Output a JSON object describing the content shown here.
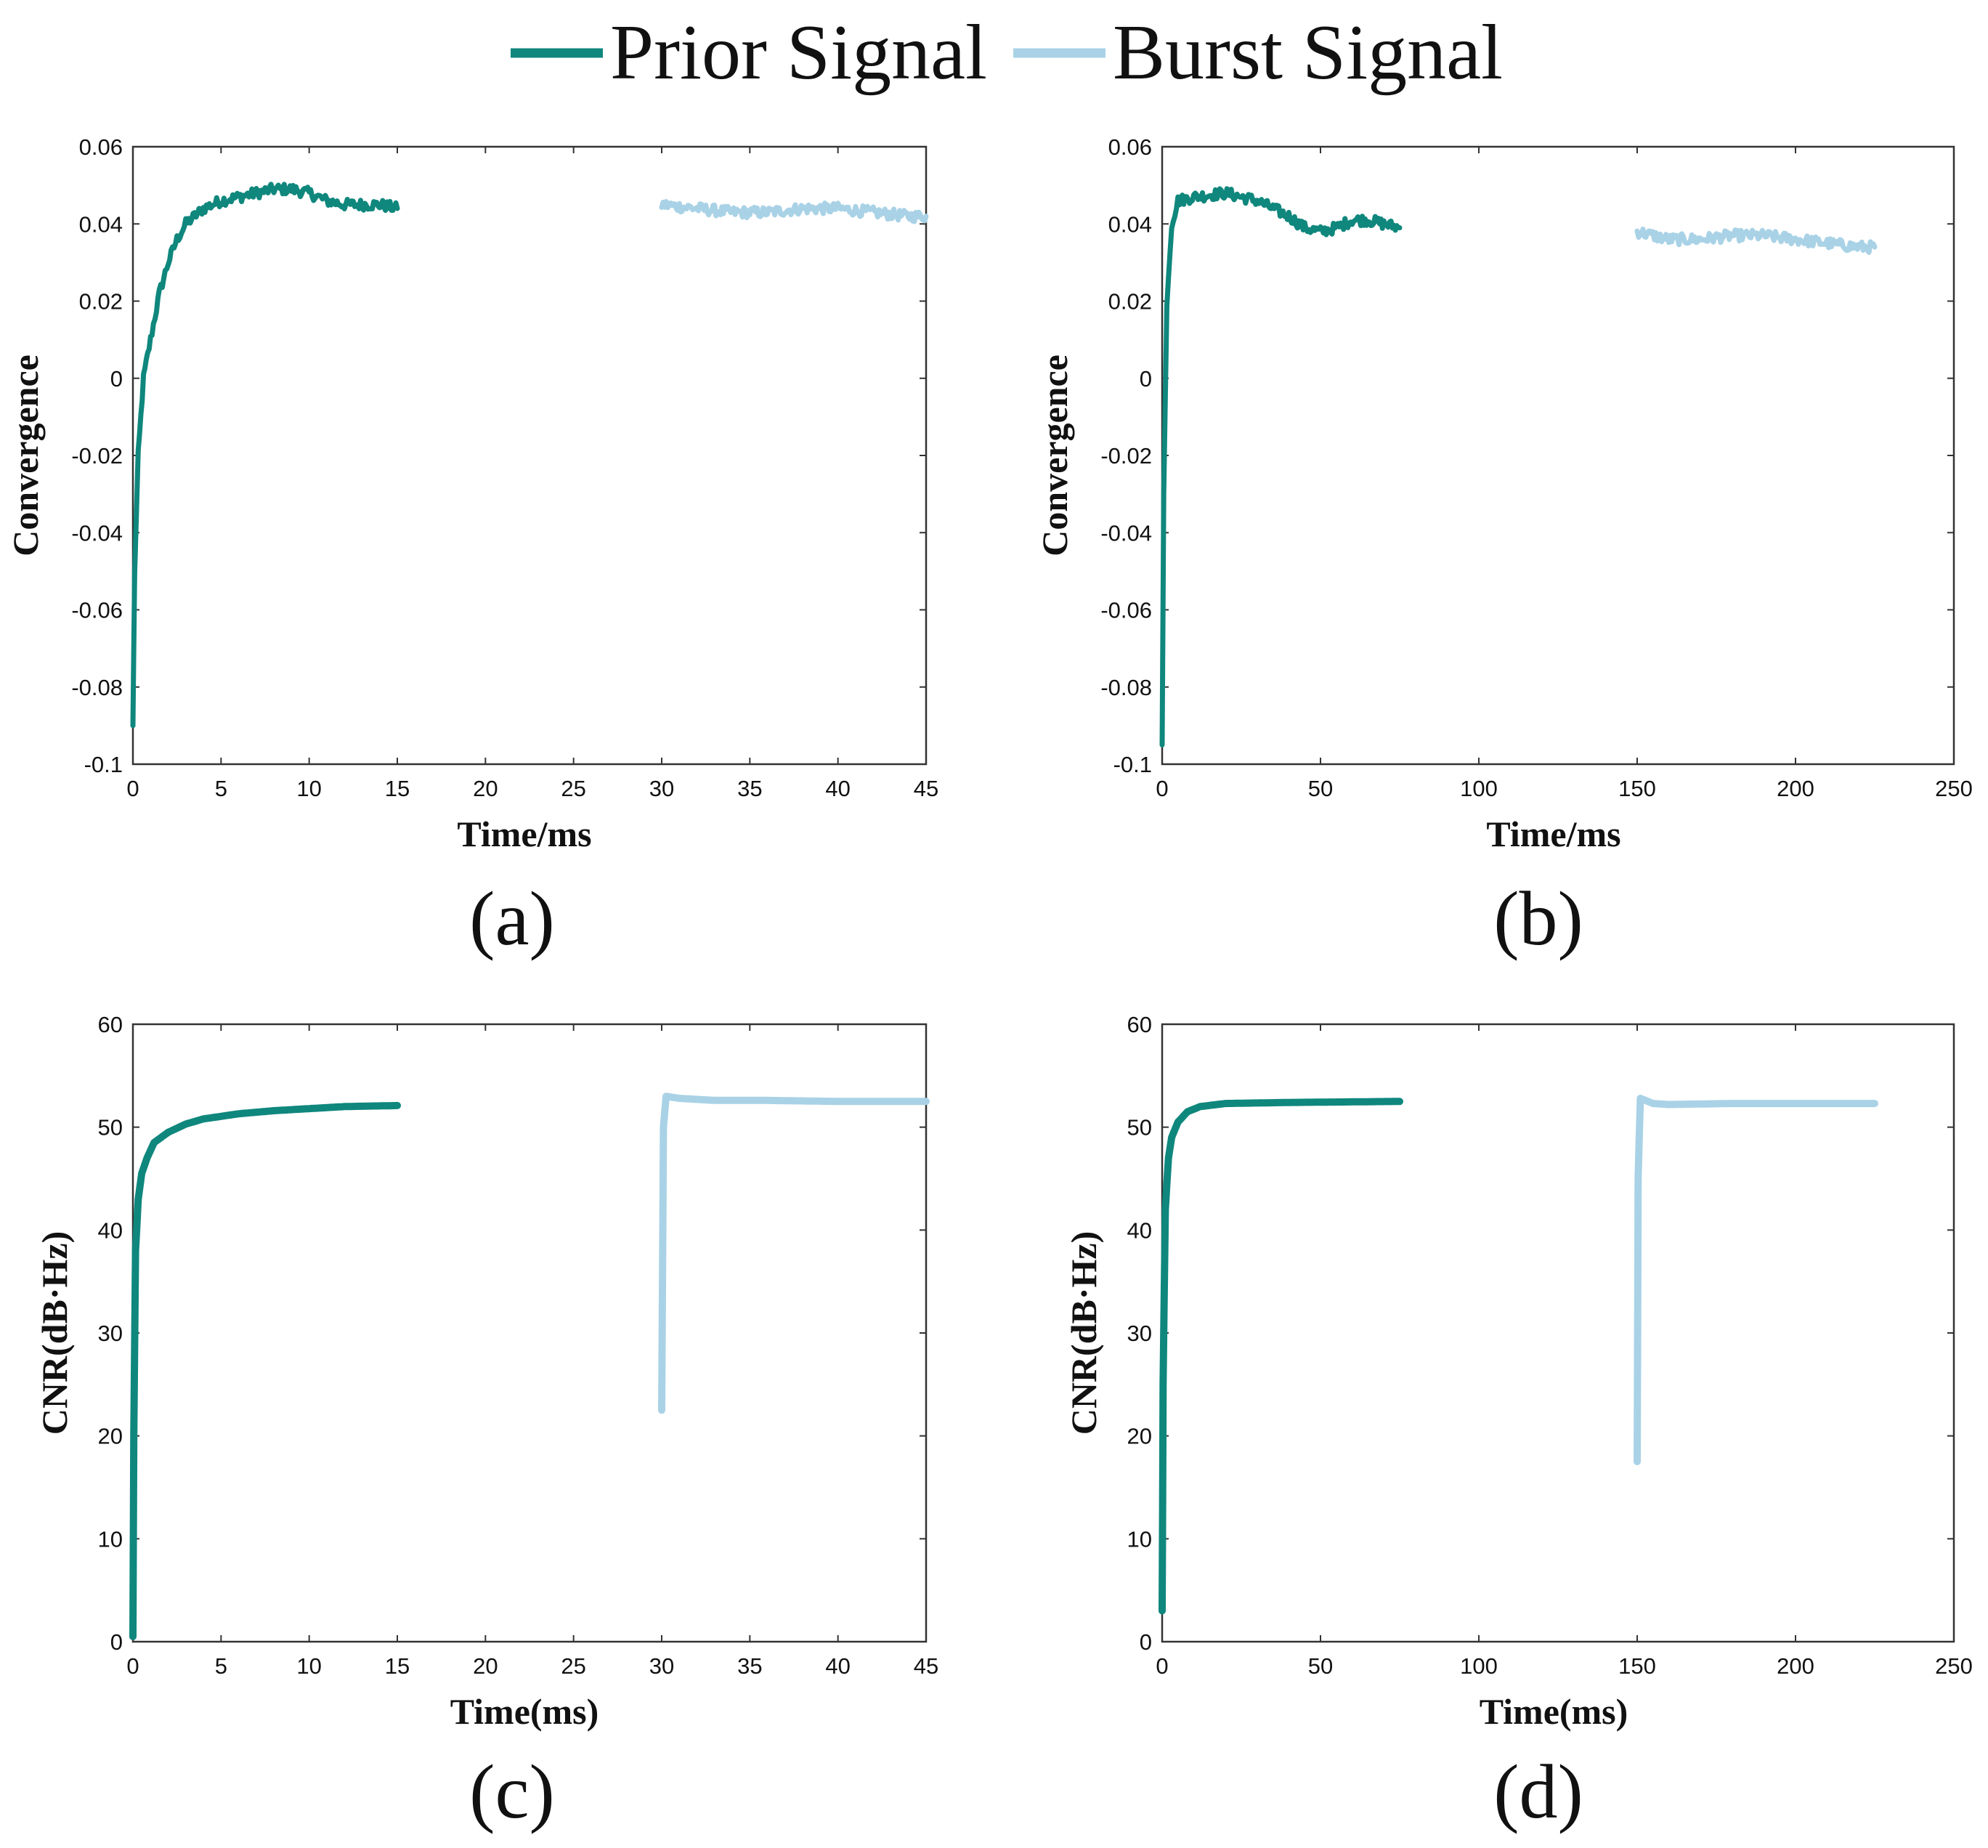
{
  "legend": {
    "items": [
      {
        "name": "Prior Signal",
        "color": "#0f877d"
      },
      {
        "name": "Burst Signal",
        "color": "#a9d2e6"
      }
    ]
  },
  "chart_data": [
    {
      "type": "line",
      "panel_label": "(a)",
      "xlabel": "Time/ms",
      "ylabel": "Convergence",
      "xlim": [
        0,
        45
      ],
      "ylim": [
        -0.1,
        0.06
      ],
      "xticks": [
        0,
        5,
        10,
        15,
        20,
        25,
        30,
        35,
        40,
        45
      ],
      "yticks": [
        -0.1,
        -0.08,
        -0.06,
        -0.04,
        -0.02,
        0,
        0.02,
        0.04,
        0.06
      ],
      "xtick_labels": [
        "0",
        "5",
        "10",
        "15",
        "20",
        "25",
        "30",
        "35",
        "40",
        "45"
      ],
      "ytick_labels": [
        "-0.1",
        "-0.08",
        "-0.06",
        "-0.04",
        "-0.02",
        "0",
        "0.02",
        "0.04",
        "0.06"
      ],
      "noisy": true,
      "series": [
        {
          "name": "Prior Signal",
          "x": [
            0,
            0.1,
            0.3,
            0.6,
            1.0,
            1.5,
            2.0,
            2.5,
            3.0,
            4.0,
            5.0,
            6.0,
            7.0,
            8.0,
            9.0,
            10.0,
            11.0,
            12.0,
            13.0,
            14.0,
            15.0
          ],
          "y": [
            -0.09,
            -0.05,
            -0.02,
            0.0,
            0.01,
            0.022,
            0.03,
            0.036,
            0.04,
            0.044,
            0.046,
            0.047,
            0.048,
            0.049,
            0.049,
            0.048,
            0.046,
            0.045,
            0.045,
            0.045,
            0.044
          ]
        },
        {
          "name": "Burst Signal",
          "x": [
            30,
            32,
            34,
            36,
            38,
            40,
            42,
            44,
            45
          ],
          "y": [
            0.045,
            0.044,
            0.043,
            0.043,
            0.044,
            0.044,
            0.043,
            0.042,
            0.042
          ]
        }
      ]
    },
    {
      "type": "line",
      "panel_label": "(b)",
      "xlabel": "Time/ms",
      "ylabel": "Convergence",
      "xlim": [
        0,
        250
      ],
      "ylim": [
        -0.1,
        0.06
      ],
      "xticks": [
        0,
        50,
        100,
        150,
        200,
        250
      ],
      "yticks": [
        -0.1,
        -0.08,
        -0.06,
        -0.04,
        -0.02,
        0,
        0.02,
        0.04,
        0.06
      ],
      "xtick_labels": [
        "0",
        "50",
        "100",
        "150",
        "200",
        "250"
      ],
      "ytick_labels": [
        "-0.1",
        "-0.08",
        "-0.06",
        "-0.04",
        "-0.02",
        "0",
        "0.02",
        "0.04",
        "0.06"
      ],
      "noisy": true,
      "series": [
        {
          "name": "Prior Signal",
          "x": [
            0,
            0.5,
            1.5,
            3,
            5,
            10,
            20,
            30,
            40,
            45,
            50,
            55,
            60,
            65,
            70,
            75
          ],
          "y": [
            -0.095,
            -0.03,
            0.02,
            0.04,
            0.046,
            0.047,
            0.048,
            0.046,
            0.042,
            0.039,
            0.038,
            0.039,
            0.041,
            0.041,
            0.04,
            0.039
          ]
        },
        {
          "name": "Burst Signal",
          "x": [
            150,
            160,
            170,
            180,
            190,
            200,
            210,
            220,
            225
          ],
          "y": [
            0.038,
            0.036,
            0.036,
            0.037,
            0.037,
            0.036,
            0.035,
            0.034,
            0.034
          ]
        }
      ]
    },
    {
      "type": "line",
      "panel_label": "(c)",
      "xlabel": "Time(ms)",
      "ylabel": "CNR(dB·Hz)",
      "xlim": [
        0,
        45
      ],
      "ylim": [
        0,
        60
      ],
      "xticks": [
        0,
        5,
        10,
        15,
        20,
        25,
        30,
        35,
        40,
        45
      ],
      "yticks": [
        0,
        10,
        20,
        30,
        40,
        50,
        60
      ],
      "xtick_labels": [
        "0",
        "5",
        "10",
        "15",
        "20",
        "25",
        "30",
        "35",
        "40",
        "45"
      ],
      "ytick_labels": [
        "0",
        "10",
        "20",
        "30",
        "40",
        "50",
        "60"
      ],
      "noisy": false,
      "series": [
        {
          "name": "Prior Signal",
          "x": [
            0,
            0.05,
            0.15,
            0.3,
            0.5,
            0.8,
            1.2,
            2,
            3,
            4,
            6,
            8,
            10,
            12,
            15
          ],
          "y": [
            0.5,
            20,
            38,
            43,
            45.5,
            47,
            48.5,
            49.5,
            50.3,
            50.8,
            51.3,
            51.6,
            51.8,
            52,
            52.1
          ]
        },
        {
          "name": "Burst Signal",
          "x": [
            30,
            30.1,
            30.25,
            31,
            33,
            36,
            40,
            45
          ],
          "y": [
            22.5,
            50,
            53,
            52.8,
            52.6,
            52.6,
            52.5,
            52.5
          ]
        }
      ]
    },
    {
      "type": "line",
      "panel_label": "(d)",
      "xlabel": "Time(ms)",
      "ylabel": "CNR(dB·Hz)",
      "xlim": [
        0,
        250
      ],
      "ylim": [
        0,
        60
      ],
      "xticks": [
        0,
        50,
        100,
        150,
        200,
        250
      ],
      "yticks": [
        0,
        10,
        20,
        30,
        40,
        50,
        60
      ],
      "xtick_labels": [
        "0",
        "50",
        "100",
        "150",
        "200",
        "250"
      ],
      "ytick_labels": [
        "0",
        "10",
        "20",
        "30",
        "40",
        "50",
        "60"
      ],
      "noisy": false,
      "series": [
        {
          "name": "Prior Signal",
          "x": [
            0,
            0.3,
            1,
            2,
            3,
            5,
            8,
            12,
            20,
            40,
            75
          ],
          "y": [
            3,
            25,
            42,
            47,
            49,
            50.5,
            51.5,
            52,
            52.3,
            52.4,
            52.5
          ]
        },
        {
          "name": "Burst Signal",
          "x": [
            150,
            150.3,
            151,
            155,
            160,
            180,
            225
          ],
          "y": [
            17.5,
            45,
            52.8,
            52.3,
            52.2,
            52.3,
            52.3
          ]
        }
      ]
    }
  ]
}
